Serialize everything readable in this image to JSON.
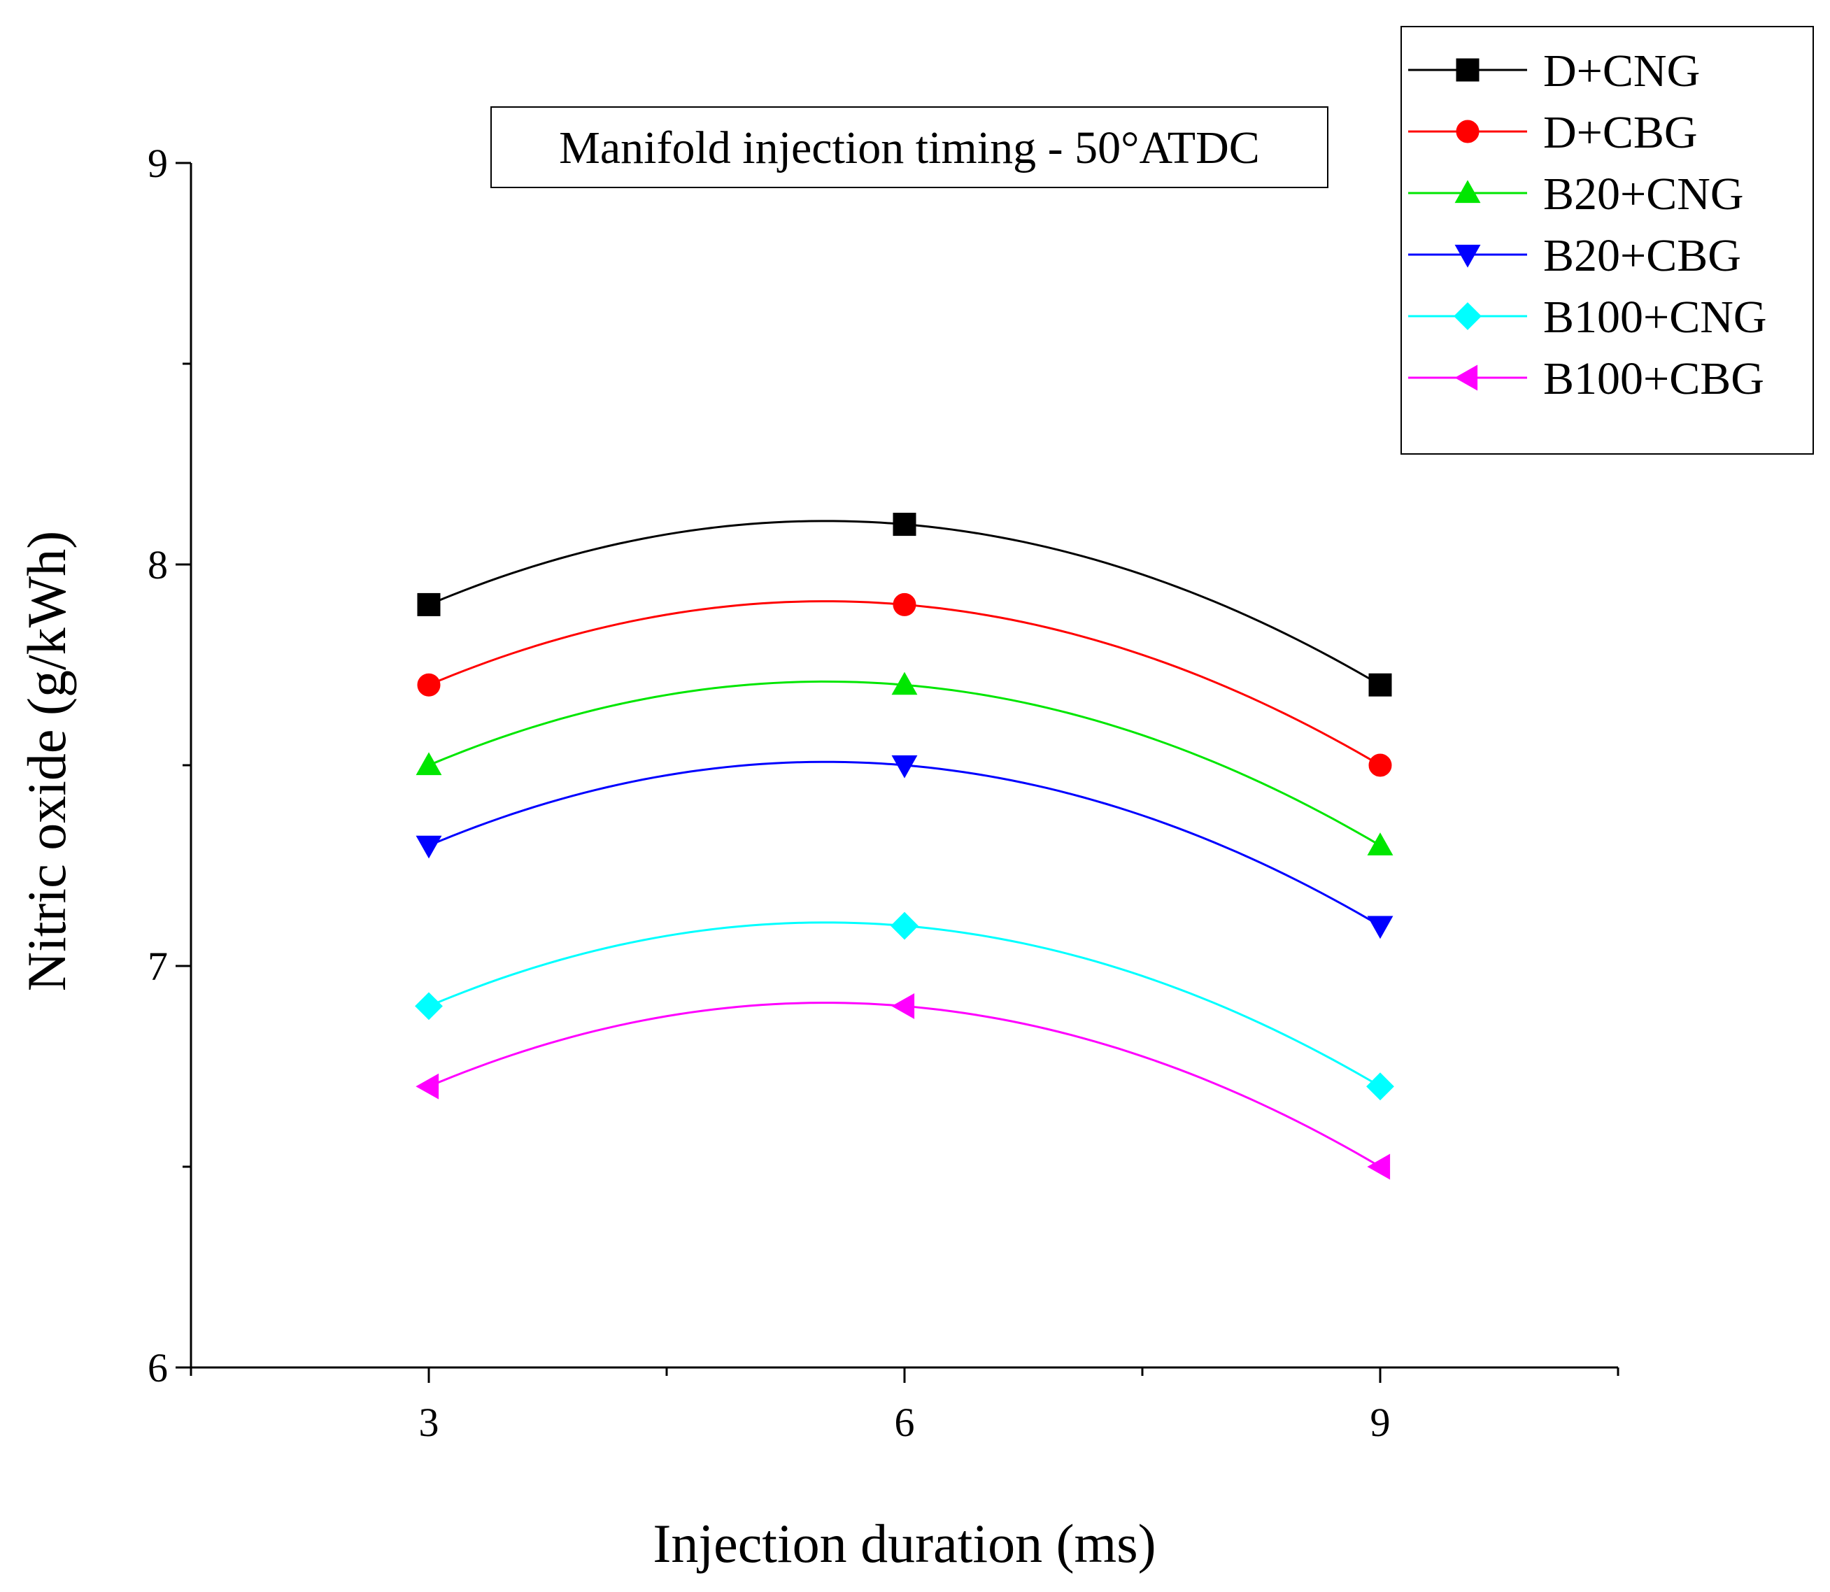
{
  "chart_data": {
    "type": "line",
    "title": "",
    "annotation": "Manifold injection timing - 50°ATDC",
    "xlabel": "Injection duration (ms)",
    "ylabel": "Nitric oxide (g/kWh)",
    "x": [
      3,
      6,
      9
    ],
    "xlim": [
      1.5,
      10.5
    ],
    "ylim": [
      6,
      9
    ],
    "xticks": [
      3,
      6,
      9
    ],
    "yticks": [
      6,
      7,
      8,
      9
    ],
    "grid": false,
    "legend_position": "top-right",
    "series": [
      {
        "name": "D+CNG",
        "values": [
          7.9,
          8.1,
          7.7
        ],
        "color": "#000000",
        "marker": "square"
      },
      {
        "name": "D+CBG",
        "values": [
          7.7,
          7.9,
          7.5
        ],
        "color": "#ff0000",
        "marker": "circle"
      },
      {
        "name": "B20+CNG",
        "values": [
          7.5,
          7.7,
          7.3
        ],
        "color": "#00e600",
        "marker": "triangle-up"
      },
      {
        "name": "B20+CBG",
        "values": [
          7.3,
          7.5,
          7.1
        ],
        "color": "#0000ff",
        "marker": "triangle-down"
      },
      {
        "name": "B100+CNG",
        "values": [
          6.9,
          7.1,
          6.7
        ],
        "color": "#00ffff",
        "marker": "diamond"
      },
      {
        "name": "B100+CBG",
        "values": [
          6.7,
          6.9,
          6.5
        ],
        "color": "#ff00ff",
        "marker": "triangle-left"
      }
    ]
  }
}
